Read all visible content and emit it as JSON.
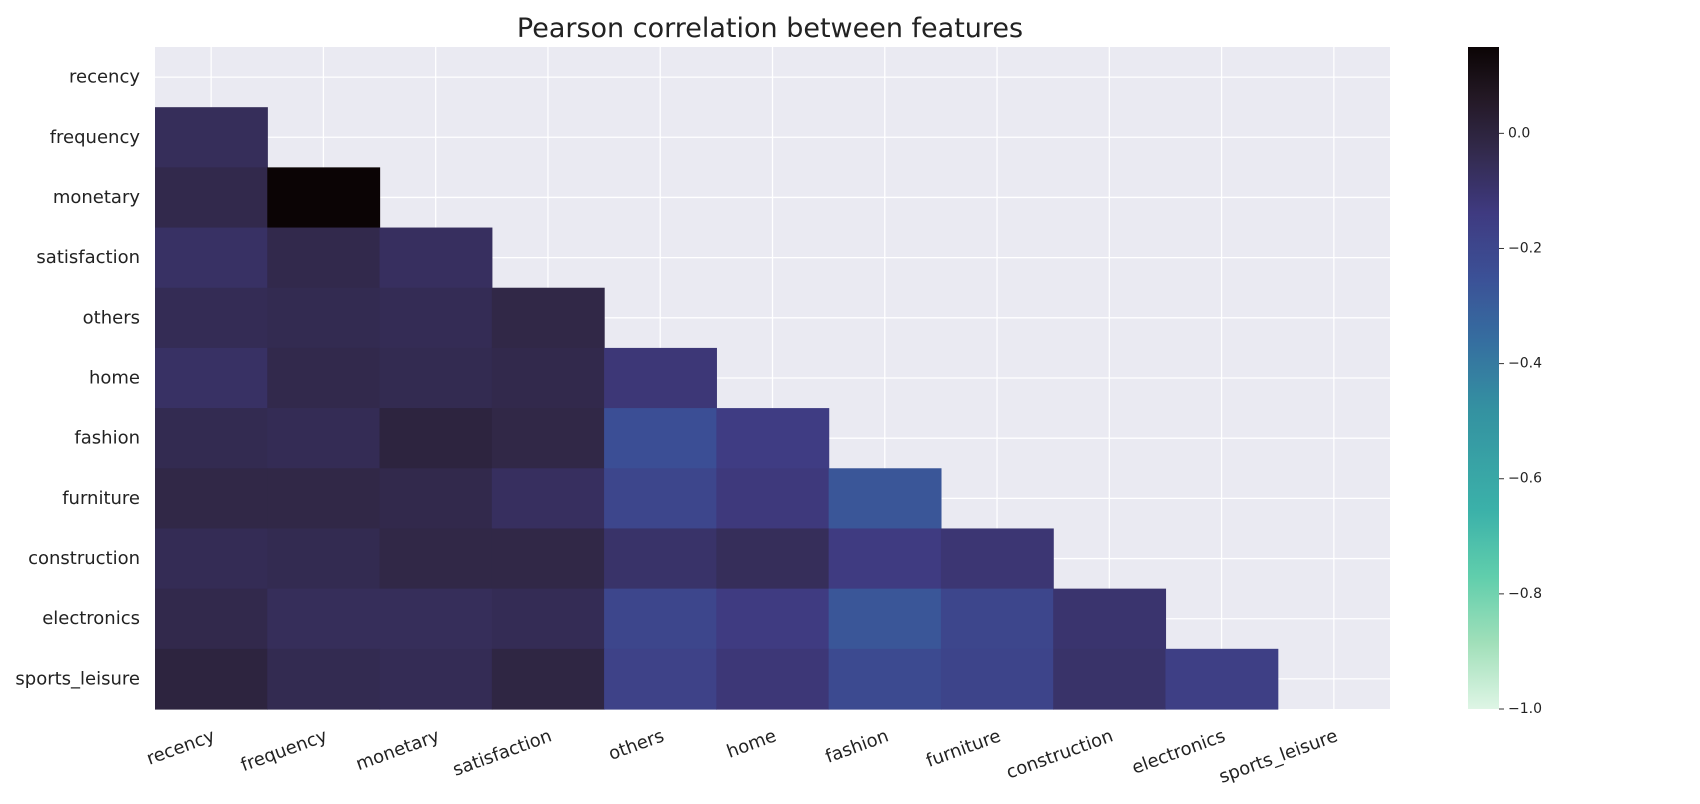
{
  "chart_data": {
    "type": "heatmap",
    "title": "Pearson correlation between features",
    "xlabel": "",
    "ylabel": "",
    "grid": true,
    "mask": "upper-triangle-including-diagonal",
    "x_categories": [
      "recency",
      "frequency",
      "monetary",
      "satisfaction",
      "others",
      "home",
      "fashion",
      "furniture",
      "construction",
      "electronics",
      "sports_leisure"
    ],
    "y_categories": [
      "recency",
      "frequency",
      "monetary",
      "satisfaction",
      "others",
      "home",
      "fashion",
      "furniture",
      "construction",
      "electronics",
      "sports_leisure"
    ],
    "values": [
      [
        null,
        null,
        null,
        null,
        null,
        null,
        null,
        null,
        null,
        null,
        null
      ],
      [
        -0.06,
        null,
        null,
        null,
        null,
        null,
        null,
        null,
        null,
        null,
        null
      ],
      [
        -0.03,
        0.15,
        null,
        null,
        null,
        null,
        null,
        null,
        null,
        null,
        null
      ],
      [
        -0.08,
        -0.03,
        -0.07,
        null,
        null,
        null,
        null,
        null,
        null,
        null,
        null
      ],
      [
        -0.05,
        -0.04,
        -0.05,
        -0.02,
        null,
        null,
        null,
        null,
        null,
        null,
        null
      ],
      [
        -0.08,
        -0.03,
        -0.04,
        -0.03,
        -0.12,
        null,
        null,
        null,
        null,
        null,
        null
      ],
      [
        -0.04,
        -0.05,
        0.0,
        -0.02,
        -0.24,
        -0.15,
        null,
        null,
        null,
        null,
        null
      ],
      [
        -0.02,
        -0.02,
        -0.03,
        -0.07,
        -0.2,
        -0.13,
        -0.27,
        null,
        null,
        null,
        null
      ],
      [
        -0.05,
        -0.04,
        -0.02,
        -0.02,
        -0.09,
        -0.06,
        -0.14,
        -0.11,
        null,
        null,
        null
      ],
      [
        -0.03,
        -0.06,
        -0.06,
        -0.05,
        -0.2,
        -0.14,
        -0.27,
        -0.2,
        -0.1,
        null,
        null
      ],
      [
        0.0,
        -0.04,
        -0.05,
        -0.01,
        -0.18,
        -0.12,
        -0.22,
        -0.19,
        -0.09,
        -0.16,
        null
      ]
    ],
    "colorbar": {
      "min": -1.0,
      "max": 0.15,
      "ticks": [
        0.0,
        -0.2,
        -0.4,
        -0.6,
        -0.8,
        -1.0
      ],
      "tick_labels": [
        "0.0",
        "−0.2",
        "−0.4",
        "−0.6",
        "−0.8",
        "−1.0"
      ],
      "colormap": "mako_r",
      "stops": [
        {
          "v": 0.0,
          "c": "#def5e5"
        },
        {
          "v": 0.1,
          "c": "#a0dfb9"
        },
        {
          "v": 0.2,
          "c": "#60ceac"
        },
        {
          "v": 0.3,
          "c": "#3bb1a9"
        },
        {
          "v": 0.45,
          "c": "#3492a1"
        },
        {
          "v": 0.55,
          "c": "#3570a0"
        },
        {
          "v": 0.65,
          "c": "#3b5197"
        },
        {
          "v": 0.75,
          "c": "#3f3a80"
        },
        {
          "v": 0.85,
          "c": "#312848"
        },
        {
          "v": 0.93,
          "c": "#221722"
        },
        {
          "v": 1.0,
          "c": "#0b0405"
        }
      ]
    },
    "colors": {
      "plot_background": "#eaeaf2",
      "grid": "#ffffff",
      "text": "#222222"
    }
  }
}
